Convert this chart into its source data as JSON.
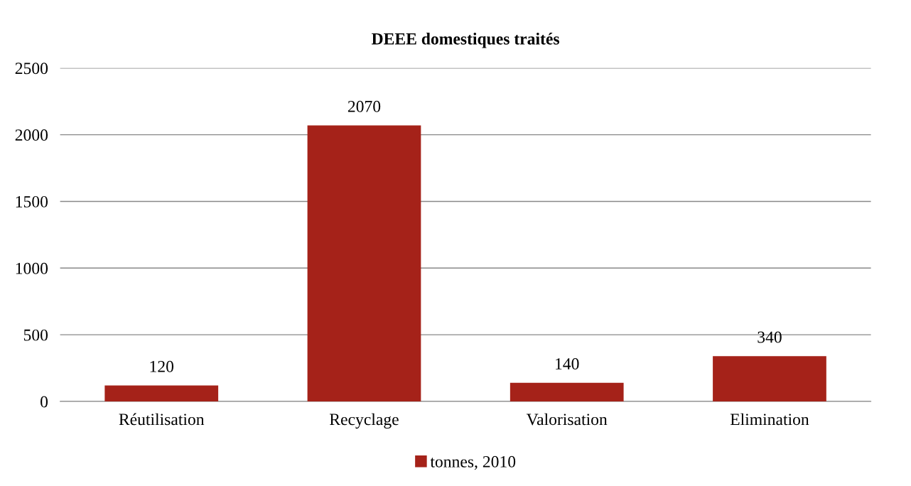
{
  "chart_data": {
    "type": "bar",
    "title": "DEEE domestiques traités",
    "categories": [
      "Réutilisation",
      "Recyclage",
      "Valorisation",
      "Elimination"
    ],
    "series": [
      {
        "name": "tonnes, 2010",
        "color": "#a52219",
        "values": [
          120,
          2070,
          140,
          340
        ]
      }
    ],
    "ylim": [
      0,
      2500
    ],
    "yticks": [
      0,
      500,
      1000,
      1500,
      2000,
      2500
    ],
    "grid": "y",
    "legend": "bottom",
    "data_labels": true
  }
}
